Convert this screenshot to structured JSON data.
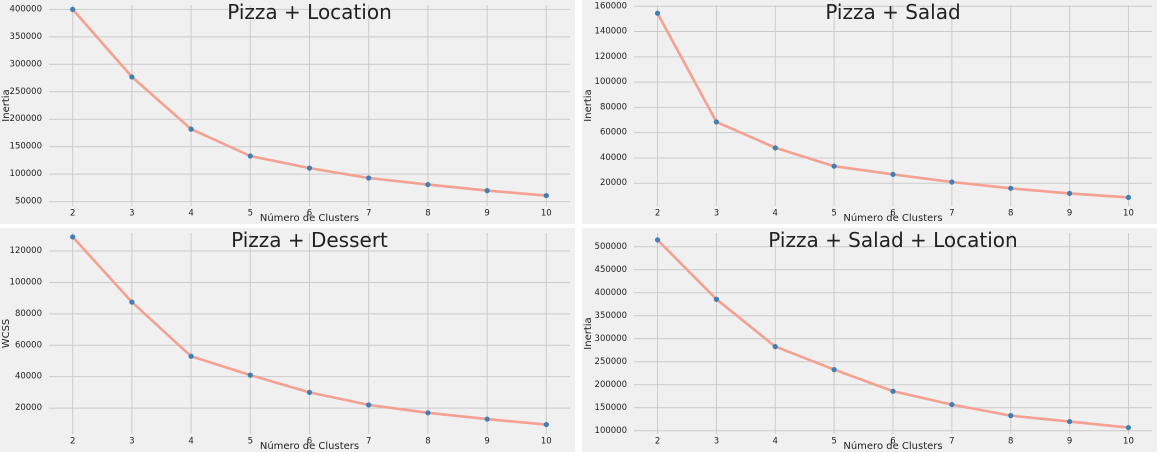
{
  "chart_data": [
    {
      "type": "line",
      "title": "Pizza + Location",
      "xlabel": "Número de Clusters",
      "ylabel": "Inertia",
      "x": [
        2,
        3,
        4,
        5,
        6,
        7,
        8,
        9,
        10
      ],
      "y": [
        400000,
        277000,
        182000,
        133000,
        111000,
        93000,
        81000,
        70000,
        61000
      ],
      "yticks": [
        50000,
        100000,
        150000,
        200000,
        250000,
        300000,
        350000,
        400000
      ],
      "ylim": [
        42000,
        408000
      ],
      "xlim": [
        1.6,
        10.4
      ],
      "grid": true,
      "colors": {
        "line": "#f4a092",
        "marker": "#3f7fb3"
      }
    },
    {
      "type": "line",
      "title": "Pizza + Salad",
      "xlabel": "Número de Clusters",
      "ylabel": "Inertia",
      "x": [
        2,
        3,
        4,
        5,
        6,
        7,
        8,
        9,
        10
      ],
      "y": [
        154500,
        68500,
        48000,
        33500,
        27000,
        21000,
        16000,
        12000,
        8800
      ],
      "yticks": [
        20000,
        40000,
        60000,
        80000,
        100000,
        120000,
        140000,
        160000
      ],
      "ylim": [
        2000,
        161000
      ],
      "xlim": [
        1.6,
        10.4
      ],
      "grid": true,
      "colors": {
        "line": "#f4a092",
        "marker": "#3f7fb3"
      }
    },
    {
      "type": "line",
      "title": "Pizza + Dessert",
      "xlabel": "Número de Clusters",
      "ylabel": "WCSS",
      "x": [
        2,
        3,
        4,
        5,
        6,
        7,
        8,
        9,
        10
      ],
      "y": [
        129000,
        87500,
        53000,
        41000,
        30000,
        22000,
        17000,
        13000,
        9500
      ],
      "yticks": [
        20000,
        40000,
        60000,
        80000,
        100000,
        120000
      ],
      "ylim": [
        3500,
        131500
      ],
      "xlim": [
        1.6,
        10.4
      ],
      "grid": true,
      "colors": {
        "line": "#f4a092",
        "marker": "#3f7fb3"
      }
    },
    {
      "type": "line",
      "title": "Pizza + Salad + Location",
      "xlabel": "Número de Clusters",
      "ylabel": "Inertia",
      "x": [
        2,
        3,
        4,
        5,
        6,
        7,
        8,
        9,
        10
      ],
      "y": [
        515000,
        386000,
        283000,
        233000,
        186000,
        157000,
        133000,
        120000,
        107000
      ],
      "yticks": [
        100000,
        150000,
        200000,
        250000,
        300000,
        350000,
        400000,
        450000,
        500000
      ],
      "ylim": [
        93000,
        530000
      ],
      "xlim": [
        1.6,
        10.4
      ],
      "grid": true,
      "colors": {
        "line": "#f4a092",
        "marker": "#3f7fb3"
      }
    }
  ]
}
